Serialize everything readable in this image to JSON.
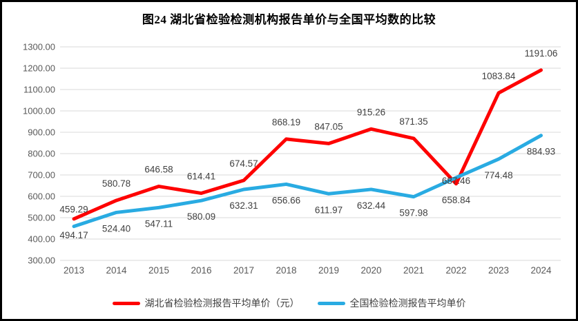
{
  "title": "图24 湖北省检验检测机构报告单价与全国平均数的比较",
  "colors": {
    "hubei_line": "#fe0000",
    "national_line": "#29abe2",
    "gridline": "#d9d9d9",
    "axis_text": "#595959",
    "data_label_text": "#404040",
    "frame_border": "#000000",
    "background": "#ffffff"
  },
  "chart_data": {
    "type": "line",
    "title": "图24 湖北省检验检测机构报告单价与全国平均数的比较",
    "categories": [
      "2013",
      "2014",
      "2015",
      "2016",
      "2017",
      "2018",
      "2019",
      "2020",
      "2021",
      "2022",
      "2023",
      "2024"
    ],
    "series": [
      {
        "name": "湖北省检验检测报告平均单价（元）",
        "color": "#fe0000",
        "values": [
          494.17,
          580.78,
          646.58,
          614.41,
          674.57,
          868.19,
          847.05,
          915.26,
          871.35,
          658.84,
          1083.84,
          1191.06
        ]
      },
      {
        "name": "全国检验检测报告平均单价",
        "color": "#29abe2",
        "values": [
          459.29,
          524.4,
          547.11,
          580.09,
          632.31,
          656.66,
          611.97,
          632.44,
          597.98,
          687.46,
          774.48,
          884.93
        ]
      }
    ],
    "xlabel": "",
    "ylabel": "",
    "ylim": [
      300,
      1300
    ],
    "ytick_step": 100,
    "y_tick_labels": [
      "1300.00",
      "1200.00",
      "1100.00",
      "1000.00",
      "900.00",
      "800.00",
      "700.00",
      "600.00",
      "500.00",
      "400.00",
      "300.00"
    ],
    "grid": true,
    "value_labels": true,
    "legend_position": "bottom"
  }
}
